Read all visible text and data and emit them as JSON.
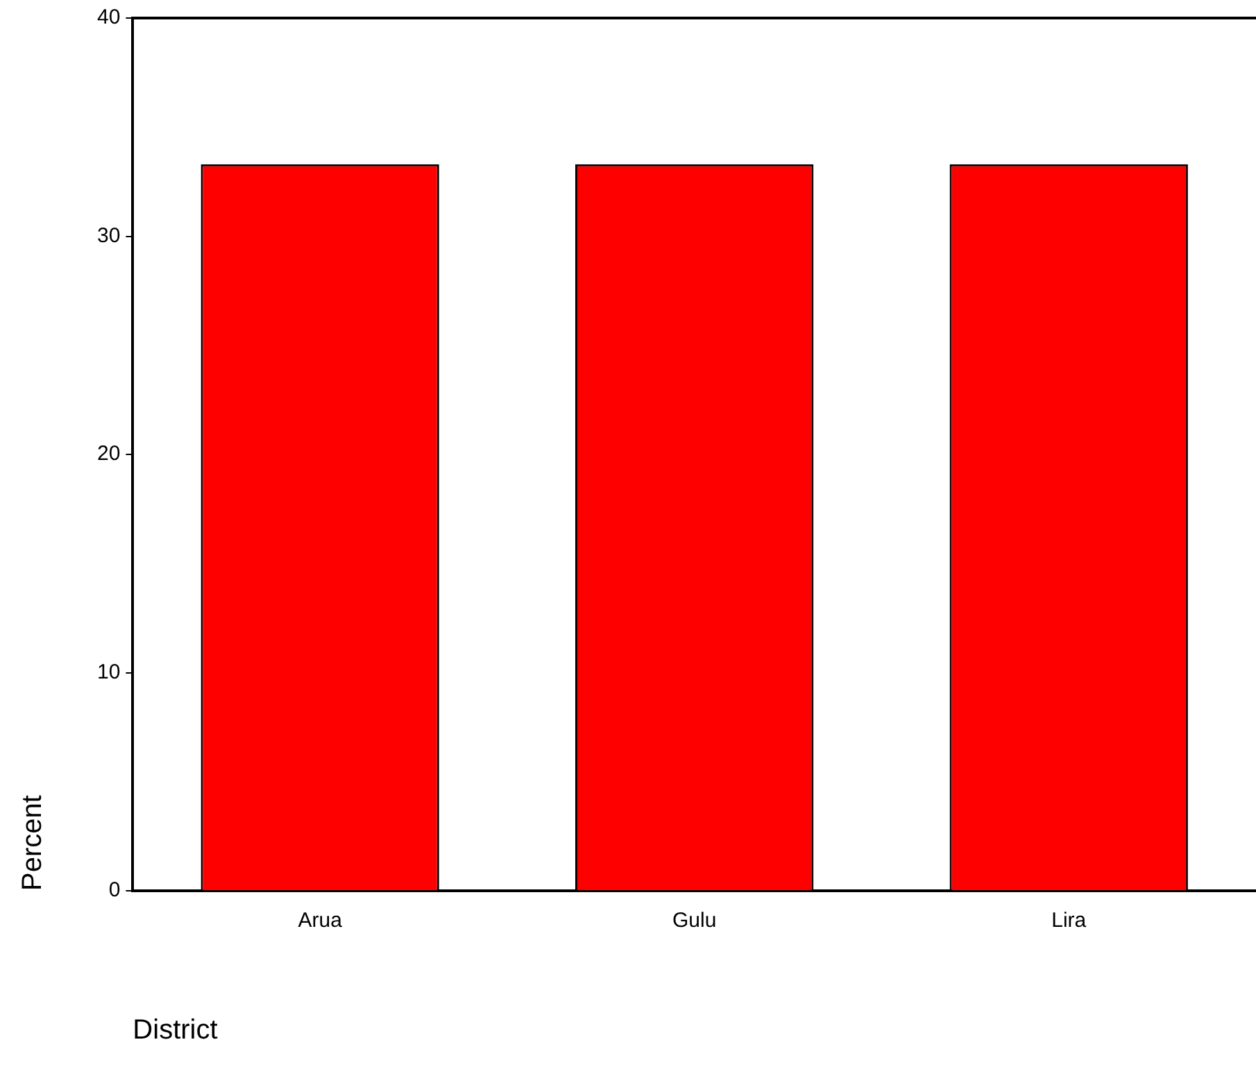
{
  "chart_data": {
    "type": "bar",
    "xlabel": "District",
    "ylabel": "Percent",
    "categories": [
      "Arua",
      "Gulu",
      "Lira"
    ],
    "values": [
      33.3,
      33.3,
      33.3
    ],
    "color": "#ff0000",
    "ylim": [
      0,
      40
    ],
    "yticks": [
      0,
      10,
      20,
      30,
      40
    ],
    "grid": false,
    "legend": false
  }
}
